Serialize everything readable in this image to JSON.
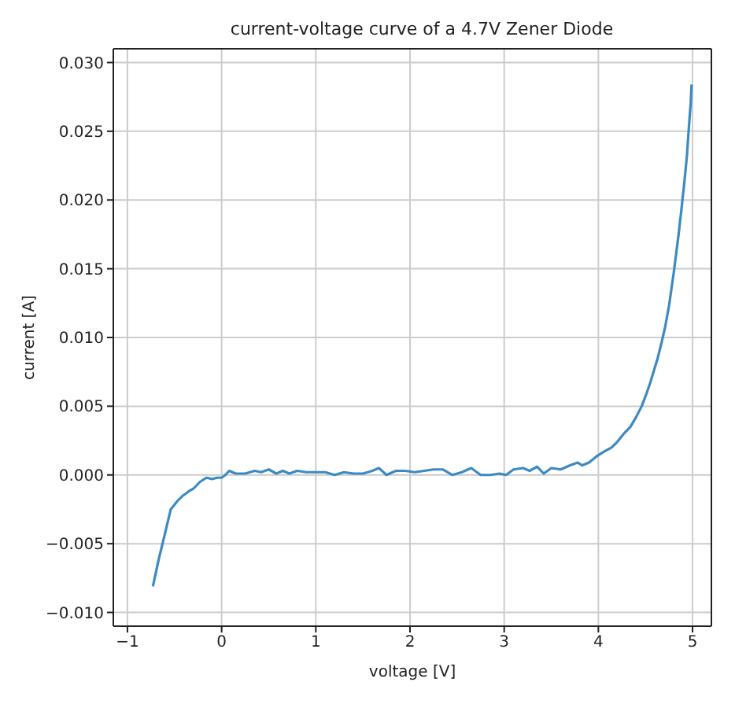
{
  "chart_data": {
    "type": "line",
    "title": "current-voltage curve of a 4.7V Zener Diode",
    "xlabel": "voltage [V]",
    "ylabel": "current [A]",
    "x": [
      -0.73,
      -0.67,
      -0.61,
      -0.54,
      -0.47,
      -0.41,
      -0.35,
      -0.3,
      -0.23,
      -0.16,
      -0.1,
      -0.05,
      0.0,
      0.04,
      0.08,
      0.15,
      0.25,
      0.35,
      0.42,
      0.5,
      0.58,
      0.65,
      0.72,
      0.8,
      0.9,
      1.0,
      1.1,
      1.2,
      1.3,
      1.4,
      1.5,
      1.6,
      1.67,
      1.75,
      1.85,
      1.95,
      2.05,
      2.15,
      2.25,
      2.35,
      2.45,
      2.55,
      2.65,
      2.75,
      2.85,
      2.95,
      3.02,
      3.1,
      3.2,
      3.27,
      3.35,
      3.42,
      3.5,
      3.6,
      3.7,
      3.78,
      3.83,
      3.9,
      3.98,
      4.06,
      4.14,
      4.2,
      4.27,
      4.34,
      4.4,
      4.46,
      4.51,
      4.55,
      4.59,
      4.63,
      4.67,
      4.71,
      4.75,
      4.8,
      4.85,
      4.88,
      4.91,
      4.94,
      4.96,
      4.98,
      4.99
    ],
    "series": [
      {
        "color": "#3d8ac2",
        "values": [
          -0.0081,
          -0.0062,
          -0.0045,
          -0.0025,
          -0.0019,
          -0.0015,
          -0.0012,
          -0.001,
          -0.0005,
          -0.0002,
          -0.0003,
          -0.0002,
          -0.0002,
          0.0,
          0.0003,
          0.0001,
          0.0001,
          0.0003,
          0.0002,
          0.0004,
          0.0001,
          0.0003,
          0.0001,
          0.0003,
          0.0002,
          0.0002,
          0.0002,
          0.0,
          0.0002,
          0.0001,
          0.0001,
          0.0003,
          0.0005,
          0.0,
          0.0003,
          0.0003,
          0.0002,
          0.0003,
          0.0004,
          0.0004,
          0.0,
          0.0002,
          0.0005,
          0.0,
          0.0,
          0.0001,
          0.0,
          0.0004,
          0.0005,
          0.0003,
          0.0006,
          0.0001,
          0.0005,
          0.0004,
          0.0007,
          0.0009,
          0.0007,
          0.0009,
          0.00135,
          0.0017,
          0.002,
          0.0024,
          0.003,
          0.0035,
          0.0042,
          0.005,
          0.0059,
          0.0067,
          0.0076,
          0.0085,
          0.0096,
          0.0108,
          0.0123,
          0.0147,
          0.0174,
          0.0192,
          0.0211,
          0.0232,
          0.0252,
          0.027,
          0.0284
        ]
      }
    ],
    "xlim": [
      -1.15,
      5.2
    ],
    "ylim": [
      -0.011,
      0.031
    ],
    "xticks": [
      -1,
      0,
      1,
      2,
      3,
      4,
      5
    ],
    "yticks": [
      {
        "value": -0.01,
        "label": "−0.010"
      },
      {
        "value": -0.005,
        "label": "−0.005"
      },
      {
        "value": 0,
        "label": "0.000"
      },
      {
        "value": 0.005,
        "label": "0.005"
      },
      {
        "value": 0.01,
        "label": "0.010"
      },
      {
        "value": 0.015,
        "label": "0.015"
      },
      {
        "value": 0.02,
        "label": "0.020"
      },
      {
        "value": 0.025,
        "label": "0.025"
      },
      {
        "value": 0.03,
        "label": "0.030"
      }
    ],
    "grid": true,
    "line_style": "solid",
    "marker": "none"
  }
}
